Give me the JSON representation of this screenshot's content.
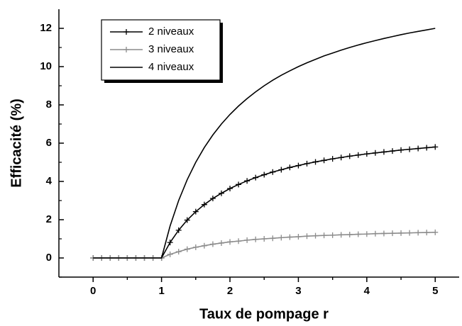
{
  "chart_data": {
    "type": "line",
    "x_label": "Taux de pompage r",
    "y_label": "Efficacité (%)",
    "x": [
      0,
      0.125,
      0.25,
      0.375,
      0.5,
      0.625,
      0.75,
      0.875,
      1,
      1.125,
      1.25,
      1.375,
      1.5,
      1.625,
      1.75,
      1.875,
      2,
      2.125,
      2.25,
      2.375,
      2.5,
      2.625,
      2.75,
      2.875,
      3,
      3.125,
      3.25,
      3.375,
      3.5,
      3.625,
      3.75,
      3.875,
      4,
      4.125,
      4.25,
      4.375,
      4.5,
      4.625,
      4.75,
      4.875,
      5
    ],
    "series": [
      {
        "name": "2 niveaux",
        "color": "#000000",
        "marker": true,
        "values": [
          0,
          0,
          0,
          0,
          0,
          0,
          0,
          0,
          0,
          0.81,
          1.45,
          1.98,
          2.42,
          2.79,
          3.11,
          3.38,
          3.63,
          3.84,
          4.03,
          4.2,
          4.35,
          4.49,
          4.61,
          4.73,
          4.83,
          4.93,
          5.02,
          5.1,
          5.18,
          5.25,
          5.32,
          5.38,
          5.44,
          5.49,
          5.54,
          5.59,
          5.64,
          5.68,
          5.72,
          5.76,
          5.8
        ]
      },
      {
        "name": "3 niveaux",
        "color": "#8c8c8c",
        "marker": true,
        "values": [
          0,
          0,
          0,
          0,
          0,
          0,
          0,
          0,
          0,
          0.19,
          0.33,
          0.46,
          0.56,
          0.64,
          0.72,
          0.78,
          0.84,
          0.88,
          0.93,
          0.97,
          1.0,
          1.03,
          1.06,
          1.09,
          1.11,
          1.14,
          1.16,
          1.18,
          1.19,
          1.21,
          1.22,
          1.24,
          1.25,
          1.27,
          1.28,
          1.29,
          1.3,
          1.31,
          1.32,
          1.33,
          1.34
        ]
      },
      {
        "name": "4 niveaux",
        "color": "#000000",
        "marker": false,
        "values": [
          0,
          0,
          0,
          0,
          0,
          0,
          0,
          0,
          0,
          1.67,
          3.0,
          4.09,
          5.0,
          5.77,
          6.43,
          7.0,
          7.5,
          7.94,
          8.33,
          8.68,
          9.0,
          9.29,
          9.55,
          9.78,
          10.0,
          10.2,
          10.38,
          10.56,
          10.71,
          10.86,
          11.0,
          11.13,
          11.25,
          11.36,
          11.47,
          11.57,
          11.67,
          11.76,
          11.84,
          11.92,
          12.0
        ]
      }
    ],
    "xlim": [
      -0.5,
      5.35
    ],
    "ylim": [
      -1,
      13
    ],
    "xticks": [
      0,
      1,
      2,
      3,
      4,
      5
    ],
    "yticks": [
      0,
      2,
      4,
      6,
      8,
      10,
      12
    ],
    "grid": false,
    "legend": "upper left"
  }
}
